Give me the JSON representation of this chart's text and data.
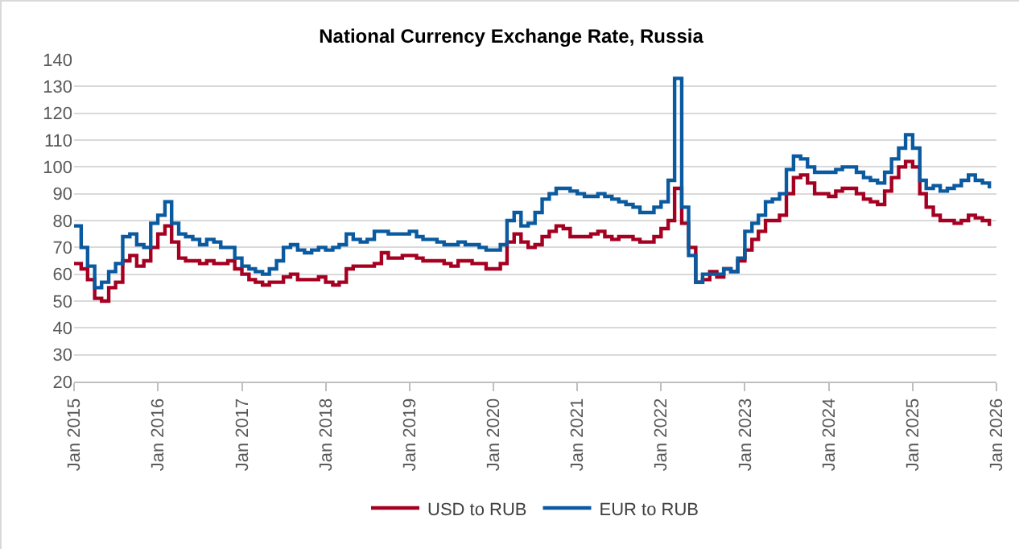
{
  "chart_data": {
    "type": "step",
    "title": "National Currency Exchange Rate, Russia",
    "x": [
      "2015-01",
      "2015-02",
      "2015-03",
      "2015-04",
      "2015-05",
      "2015-06",
      "2015-07",
      "2015-08",
      "2015-09",
      "2015-10",
      "2015-11",
      "2015-12",
      "2016-01",
      "2016-02",
      "2016-03",
      "2016-04",
      "2016-05",
      "2016-06",
      "2016-07",
      "2016-08",
      "2016-09",
      "2016-10",
      "2016-11",
      "2016-12",
      "2017-01",
      "2017-02",
      "2017-03",
      "2017-04",
      "2017-05",
      "2017-06",
      "2017-07",
      "2017-08",
      "2017-09",
      "2017-10",
      "2017-11",
      "2017-12",
      "2018-01",
      "2018-02",
      "2018-03",
      "2018-04",
      "2018-05",
      "2018-06",
      "2018-07",
      "2018-08",
      "2018-09",
      "2018-10",
      "2018-11",
      "2018-12",
      "2019-01",
      "2019-02",
      "2019-03",
      "2019-04",
      "2019-05",
      "2019-06",
      "2019-07",
      "2019-08",
      "2019-09",
      "2019-10",
      "2019-11",
      "2019-12",
      "2020-01",
      "2020-02",
      "2020-03",
      "2020-04",
      "2020-05",
      "2020-06",
      "2020-07",
      "2020-08",
      "2020-09",
      "2020-10",
      "2020-11",
      "2020-12",
      "2021-01",
      "2021-02",
      "2021-03",
      "2021-04",
      "2021-05",
      "2021-06",
      "2021-07",
      "2021-08",
      "2021-09",
      "2021-10",
      "2021-11",
      "2021-12",
      "2022-01",
      "2022-02",
      "2022-03",
      "2022-04",
      "2022-05",
      "2022-06",
      "2022-07",
      "2022-08",
      "2022-09",
      "2022-10",
      "2022-11",
      "2022-12",
      "2023-01",
      "2023-02",
      "2023-03",
      "2023-04",
      "2023-05",
      "2023-06",
      "2023-07",
      "2023-08",
      "2023-09",
      "2023-10",
      "2023-11",
      "2023-12",
      "2024-01",
      "2024-02",
      "2024-03",
      "2024-04",
      "2024-05",
      "2024-06",
      "2024-07",
      "2024-08",
      "2024-09",
      "2024-10",
      "2024-11",
      "2024-12",
      "2025-01",
      "2025-02",
      "2025-03",
      "2025-04",
      "2025-05",
      "2025-06",
      "2025-07",
      "2025-08",
      "2025-09",
      "2025-10",
      "2025-11",
      "2025-12"
    ],
    "series": [
      {
        "name": "USD to RUB",
        "color": "#a50021",
        "values": [
          64,
          62,
          58,
          51,
          50,
          55,
          57,
          65,
          67,
          63,
          65,
          70,
          75,
          78,
          72,
          66,
          65,
          65,
          64,
          65,
          64,
          64,
          65,
          62,
          60,
          58,
          57,
          56,
          57,
          57,
          59,
          60,
          58,
          58,
          58,
          59,
          57,
          56,
          57,
          62,
          63,
          63,
          63,
          64,
          68,
          66,
          66,
          67,
          67,
          66,
          65,
          65,
          65,
          64,
          63,
          65,
          65,
          64,
          64,
          62,
          62,
          64,
          72,
          75,
          72,
          70,
          71,
          74,
          76,
          78,
          77,
          74,
          74,
          74,
          75,
          76,
          74,
          73,
          74,
          74,
          73,
          72,
          72,
          74,
          77,
          80,
          92,
          79,
          70,
          57,
          58,
          61,
          59,
          62,
          61,
          65,
          69,
          73,
          76,
          80,
          80,
          82,
          90,
          96,
          97,
          94,
          90,
          90,
          89,
          91,
          92,
          92,
          90,
          88,
          87,
          86,
          91,
          96,
          100,
          102,
          100,
          90,
          85,
          82,
          80,
          80,
          79,
          80,
          82,
          81,
          80,
          78
        ]
      },
      {
        "name": "EUR to RUB",
        "color": "#0a5aa0",
        "values": [
          78,
          70,
          63,
          55,
          57,
          61,
          64,
          74,
          75,
          71,
          70,
          79,
          82,
          87,
          79,
          75,
          74,
          73,
          71,
          73,
          72,
          70,
          70,
          66,
          63,
          62,
          61,
          60,
          62,
          65,
          70,
          71,
          69,
          68,
          69,
          70,
          69,
          70,
          71,
          75,
          73,
          72,
          73,
          76,
          76,
          75,
          75,
          75,
          76,
          74,
          73,
          73,
          72,
          71,
          71,
          72,
          71,
          71,
          70,
          69,
          69,
          71,
          80,
          83,
          78,
          79,
          83,
          88,
          90,
          92,
          92,
          91,
          90,
          89,
          89,
          90,
          89,
          88,
          87,
          86,
          85,
          83,
          83,
          85,
          87,
          95,
          133,
          85,
          67,
          57,
          60,
          60,
          60,
          62,
          61,
          66,
          76,
          79,
          82,
          87,
          88,
          90,
          99,
          104,
          103,
          100,
          98,
          98,
          98,
          99,
          100,
          100,
          98,
          96,
          95,
          94,
          98,
          103,
          107,
          112,
          107,
          95,
          92,
          93,
          91,
          92,
          93,
          95,
          97,
          95,
          94,
          92
        ]
      }
    ],
    "xlim": [
      "2015-01",
      "2026-01"
    ],
    "xticks": [
      {
        "value": "2015-01",
        "label": "Jan 2015"
      },
      {
        "value": "2016-01",
        "label": "Jan 2016"
      },
      {
        "value": "2017-01",
        "label": "Jan 2017"
      },
      {
        "value": "2018-01",
        "label": "Jan 2018"
      },
      {
        "value": "2019-01",
        "label": "Jan 2019"
      },
      {
        "value": "2020-01",
        "label": "Jan 2020"
      },
      {
        "value": "2021-01",
        "label": "Jan 2021"
      },
      {
        "value": "2022-01",
        "label": "Jan 2022"
      },
      {
        "value": "2023-01",
        "label": "Jan 2023"
      },
      {
        "value": "2024-01",
        "label": "Jan 2024"
      },
      {
        "value": "2025-01",
        "label": "Jan 2025"
      },
      {
        "value": "2026-01",
        "label": "Jan 2026"
      }
    ],
    "ylim": [
      20,
      140
    ],
    "yticks": [
      20,
      30,
      40,
      50,
      60,
      70,
      80,
      90,
      100,
      110,
      120,
      130,
      140
    ],
    "grid": "y",
    "legend": "bottom",
    "line_style": "solid"
  }
}
